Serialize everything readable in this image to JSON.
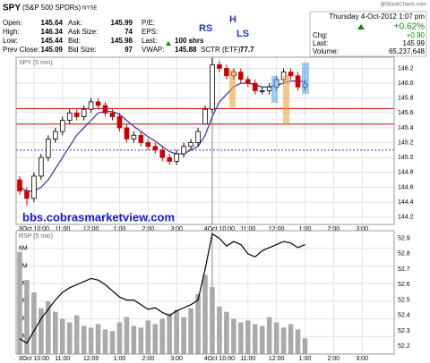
{
  "header": {
    "symbol": "SPY",
    "name": "(S&P 500 SPDRs)",
    "exchange": "NYSE",
    "copyright": "@StockCharts.com",
    "quote": [
      [
        [
          "Open:",
          145.64
        ],
        [
          "Ask:",
          145.99
        ],
        [
          "P/E:"
        ]
      ],
      [
        [
          "High:",
          146.34
        ],
        [
          "Ask Size:",
          74
        ],
        [
          "EPS:"
        ]
      ],
      [
        [
          "Low:",
          145.44
        ],
        [
          "Bid:",
          145.98
        ],
        [
          "Last:",
          "100 shrs"
        ]
      ],
      [
        [
          "Prev Close:",
          145.09
        ],
        [
          "Bid Size:",
          97
        ],
        [
          "VWAP:",
          145.88
        ],
        [
          "SCTR (ETF):",
          77.7
        ]
      ]
    ],
    "status": {
      "date": "Thursday  4-Oct-2012  1:07 pm",
      "pct": "+0.62%",
      "rows": [
        [
          "Chg:",
          "+0.90"
        ],
        [
          "Last:",
          145.99
        ],
        [
          "Volume:",
          "65,237,648"
        ]
      ]
    }
  },
  "annotations": [
    "RS",
    "H",
    "LS"
  ],
  "watermark": "bbs.cobrasmarketview.com",
  "chart_data": [
    {
      "type": "candlestick",
      "title": "SPY (5 min)",
      "x": [
        0,
        1,
        2,
        3,
        4,
        5,
        6,
        7,
        8,
        9,
        10,
        11,
        12,
        13,
        14,
        15,
        16,
        17,
        18,
        19,
        20,
        21,
        22,
        23,
        24,
        25,
        26,
        27,
        28,
        29,
        30,
        31,
        32,
        33,
        34,
        35,
        36,
        37,
        38,
        39,
        40
      ],
      "open": [
        144.7,
        144.55,
        144.45,
        144.75,
        145.0,
        145.25,
        145.35,
        145.5,
        145.6,
        145.55,
        145.65,
        145.75,
        145.7,
        145.6,
        145.55,
        145.4,
        145.25,
        145.3,
        145.2,
        145.15,
        145.1,
        145.0,
        144.95,
        145.05,
        145.15,
        145.2,
        145.45,
        145.65,
        146.25,
        146.2,
        146.1,
        146.15,
        146.05,
        146.0,
        145.9,
        145.9,
        145.95,
        146.05,
        146.15,
        146.1,
        145.95
      ],
      "high": [
        144.75,
        144.6,
        144.8,
        145.05,
        145.3,
        145.4,
        145.55,
        145.65,
        145.65,
        145.7,
        145.8,
        145.8,
        145.75,
        145.65,
        145.6,
        145.45,
        145.35,
        145.35,
        145.25,
        145.2,
        145.15,
        145.05,
        145.1,
        145.2,
        145.25,
        145.4,
        145.7,
        146.34,
        146.3,
        146.25,
        146.2,
        146.2,
        146.1,
        146.05,
        145.95,
        146.0,
        146.1,
        146.2,
        146.2,
        146.15,
        146.05
      ],
      "low": [
        144.5,
        144.35,
        144.4,
        144.7,
        144.95,
        145.2,
        145.3,
        145.45,
        145.5,
        145.5,
        145.6,
        145.65,
        145.55,
        145.5,
        145.35,
        145.2,
        145.2,
        145.15,
        145.1,
        145.05,
        144.95,
        144.9,
        144.9,
        145.0,
        145.1,
        145.15,
        145.44,
        145.6,
        146.15,
        146.05,
        146.05,
        146.0,
        145.95,
        145.85,
        145.85,
        145.85,
        145.9,
        146.0,
        146.05,
        145.9,
        145.9
      ],
      "close": [
        144.55,
        144.45,
        144.75,
        145.0,
        145.25,
        145.35,
        145.5,
        145.6,
        145.55,
        145.65,
        145.75,
        145.7,
        145.6,
        145.55,
        145.4,
        145.25,
        145.3,
        145.2,
        145.15,
        145.1,
        145.0,
        144.95,
        145.05,
        145.15,
        145.2,
        145.35,
        145.65,
        146.25,
        146.2,
        146.1,
        146.15,
        146.05,
        146.0,
        145.9,
        145.9,
        145.95,
        146.05,
        146.15,
        146.1,
        145.95,
        145.99
      ],
      "up_color": "#000000",
      "down_color": "#cc0000",
      "ma_values": [
        144.6,
        144.55,
        144.55,
        144.6,
        144.7,
        144.85,
        145.0,
        145.15,
        145.3,
        145.4,
        145.5,
        145.6,
        145.62,
        145.62,
        145.58,
        145.5,
        145.42,
        145.35,
        145.28,
        145.22,
        145.15,
        145.08,
        145.05,
        145.05,
        145.1,
        145.15,
        145.3,
        145.55,
        145.75,
        145.85,
        145.95,
        146.0,
        146.0,
        145.98,
        145.95,
        145.95,
        145.97,
        146.0,
        146.03,
        146.03,
        146.02
      ],
      "ma_color": "#333399",
      "levels": [
        {
          "value": 145.66,
          "color": "#cc0000",
          "style": "solid"
        },
        {
          "value": 145.45,
          "color": "#cc0000",
          "style": "solid"
        },
        {
          "value": 145.1,
          "color": "#3333cc",
          "style": "dotted"
        }
      ],
      "xlim": [
        -0.5,
        52.5
      ],
      "xticks": [
        {
          "value": 2,
          "label": "3Oct 10:00"
        },
        {
          "value": 6,
          "label": "11:00"
        },
        {
          "value": 10,
          "label": "12:00"
        },
        {
          "value": 14,
          "label": "1:00"
        },
        {
          "value": 18,
          "label": "2:00"
        },
        {
          "value": 22,
          "label": "3:00"
        },
        {
          "value": 28,
          "label": "4Oct 10:00"
        },
        {
          "value": 32,
          "label": "11:00"
        },
        {
          "value": 36,
          "label": "12:00"
        },
        {
          "value": 40,
          "label": "1:00"
        },
        {
          "value": 44,
          "label": "2:00"
        },
        {
          "value": 48,
          "label": "3:00"
        }
      ],
      "ylim": [
        144.1,
        146.35
      ],
      "yticks": [
        146.2,
        {
          "value": 146,
          "label": "146.0"
        },
        145.8,
        145.6,
        145.4,
        145.2,
        {
          "value": 145,
          "label": "145.0"
        },
        144.8,
        144.6,
        144.4,
        144.2
      ],
      "grid": true
    },
    {
      "type": "volume",
      "title": "RSP (5 min)",
      "x": [
        0,
        1,
        2,
        3,
        4,
        5,
        6,
        7,
        8,
        9,
        10,
        11,
        12,
        13,
        14,
        15,
        16,
        17,
        18,
        19,
        20,
        21,
        22,
        23,
        24,
        25,
        26,
        27,
        28,
        29,
        30,
        31,
        32,
        33,
        34,
        35,
        36,
        37,
        38,
        39,
        40
      ],
      "series": [
        {
          "color": "#aaaaaa",
          "axis": "y",
          "values": [
            5800000,
            4200000,
            3500000,
            2600000,
            3000000,
            2400000,
            2000000,
            1800000,
            2200000,
            1600000,
            1500000,
            1700000,
            1400000,
            1300000,
            1800000,
            2100000,
            1600000,
            1500000,
            1900000,
            1700000,
            2000000,
            2300000,
            2500000,
            2100000,
            2600000,
            3400000,
            4500000,
            3800000,
            2700000,
            2400000,
            2000000,
            1800000,
            1900000,
            1700000,
            1600000,
            2100000,
            1800000,
            1500000,
            1700000,
            1400000,
            900000
          ]
        },
        {
          "color": "#000000",
          "axis": "y2",
          "values": [
            52.25,
            52.22,
            52.3,
            52.38,
            52.44,
            52.5,
            52.55,
            52.58,
            52.6,
            52.62,
            52.64,
            52.63,
            52.6,
            52.56,
            52.52,
            52.5,
            52.5,
            52.47,
            52.44,
            52.45,
            52.42,
            52.4,
            52.43,
            52.45,
            52.47,
            52.5,
            52.7,
            52.93,
            52.9,
            52.85,
            52.88,
            52.86,
            52.8,
            52.78,
            52.82,
            52.84,
            52.86,
            52.88,
            52.87,
            52.84,
            52.86
          ]
        }
      ],
      "xlim": [
        -0.5,
        52.5
      ],
      "xticks": [
        {
          "value": 2,
          "label": "3Oct 10:00"
        },
        {
          "value": 6,
          "label": "11:00"
        },
        {
          "value": 10,
          "label": "12:00"
        },
        {
          "value": 14,
          "label": "1:00"
        },
        {
          "value": 18,
          "label": "2:00"
        },
        {
          "value": 22,
          "label": "3:00"
        },
        {
          "value": 28,
          "label": "4Oct 10:00"
        },
        {
          "value": 32,
          "label": "11:00"
        },
        {
          "value": 36,
          "label": "12:00"
        },
        {
          "value": 40,
          "label": "1:00"
        },
        {
          "value": 44,
          "label": "2:00"
        },
        {
          "value": 48,
          "label": "3:00"
        }
      ],
      "ylim": [
        0,
        7000000
      ],
      "yticks": [
        {
          "value": 1000000,
          "label": "1M"
        },
        {
          "value": 2000000,
          "label": "2M"
        },
        {
          "value": 3000000,
          "label": "3M"
        },
        {
          "value": 4000000,
          "label": "4M"
        },
        {
          "value": 5000000,
          "label": "5M"
        },
        {
          "value": 6000000,
          "label": "6M"
        }
      ],
      "y2lim": [
        52.15,
        52.95
      ],
      "y2ticks": [
        52.2,
        52.3,
        52.4,
        52.5,
        52.6,
        52.7,
        52.8,
        52.9
      ],
      "grid": true
    }
  ]
}
